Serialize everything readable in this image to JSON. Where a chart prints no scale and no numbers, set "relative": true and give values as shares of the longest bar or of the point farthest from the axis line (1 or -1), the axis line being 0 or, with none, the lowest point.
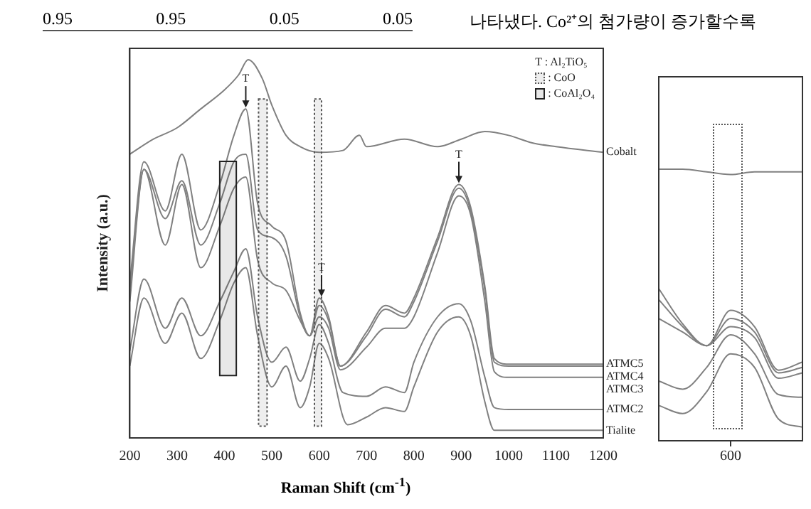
{
  "chart_data": [
    {
      "type": "other",
      "annotations": [
        "0.95",
        "0.95",
        "0.05",
        "0.05",
        "나타냈다. Co²⁺의 첨가량이 증가할수록"
      ]
    },
    {
      "type": "line",
      "relative": true,
      "legend": "top right",
      "xlabel": "Raman Shift (cm$^{-1}$)",
      "ylabel": "Intensity (a.u.)",
      "tick_labels": "x",
      "xlim": [
        200,
        1200
      ],
      "xticks": [
        200,
        300,
        400,
        500,
        600,
        700,
        800,
        900,
        1000,
        1100,
        1200
      ],
      "annotations": [
        "T : Al₂TiO₅",
        {
          "text": "T",
          "x": 445,
          "y": 0.87
        },
        {
          "text": "T",
          "x": 605,
          "y": 0.37
        },
        {
          "text": "T",
          "x": 895,
          "y": 0.67
        }
      ],
      "bands": [
        {
          "axis": "x",
          "from": 472,
          "to": 490,
          "label": ": CoO",
          "color": "#555555"
        },
        {
          "axis": "x",
          "from": 590,
          "to": 605,
          "color": "#555555"
        },
        {
          "axis": "x",
          "from": 390,
          "to": 425,
          "label": ": CoAl₂O₄",
          "color": "#222222"
        }
      ],
      "series": [
        {
          "name": "Cobalt",
          "color": "#808080",
          "x": [
            200,
            250,
            300,
            350,
            400,
            430,
            450,
            480,
            500,
            530,
            560,
            600,
            650,
            685,
            700,
            780,
            850,
            900,
            950,
            1000,
            1050,
            1100,
            1200
          ],
          "values": [
            0.75,
            0.79,
            0.82,
            0.87,
            0.92,
            0.96,
            1.0,
            0.95,
            0.88,
            0.8,
            0.77,
            0.755,
            0.76,
            0.8,
            0.77,
            0.79,
            0.77,
            0.79,
            0.81,
            0.8,
            0.78,
            0.77,
            0.755
          ]
        },
        {
          "name": "ATMC5",
          "color": "#808080",
          "x": [
            200,
            230,
            275,
            310,
            350,
            390,
            420,
            445,
            470,
            500,
            530,
            560,
            580,
            600,
            620,
            645,
            700,
            740,
            780,
            800,
            850,
            895,
            920,
            950,
            970,
            1000,
            1200
          ],
          "values": [
            0.41,
            0.73,
            0.6,
            0.75,
            0.55,
            0.67,
            0.8,
            0.87,
            0.62,
            0.56,
            0.52,
            0.33,
            0.27,
            0.37,
            0.32,
            0.19,
            0.28,
            0.35,
            0.33,
            0.37,
            0.53,
            0.67,
            0.61,
            0.4,
            0.21,
            0.195,
            0.195
          ]
        },
        {
          "name": "ATMC4",
          "color": "#808080",
          "x": [
            200,
            230,
            275,
            310,
            350,
            390,
            420,
            445,
            470,
            500,
            530,
            560,
            580,
            600,
            620,
            645,
            700,
            740,
            780,
            800,
            850,
            895,
            920,
            950,
            970,
            1000,
            1200
          ],
          "values": [
            0.39,
            0.71,
            0.58,
            0.68,
            0.51,
            0.62,
            0.73,
            0.75,
            0.55,
            0.53,
            0.48,
            0.32,
            0.27,
            0.35,
            0.31,
            0.19,
            0.27,
            0.34,
            0.32,
            0.36,
            0.52,
            0.66,
            0.6,
            0.39,
            0.2,
            0.19,
            0.19
          ]
        },
        {
          "name": "ATMC3",
          "color": "#808080",
          "x": [
            200,
            230,
            275,
            310,
            350,
            390,
            420,
            445,
            470,
            500,
            530,
            560,
            580,
            600,
            620,
            645,
            700,
            740,
            780,
            800,
            850,
            895,
            920,
            950,
            970,
            1000,
            1200
          ],
          "values": [
            0.36,
            0.71,
            0.51,
            0.67,
            0.45,
            0.56,
            0.66,
            0.69,
            0.47,
            0.41,
            0.39,
            0.31,
            0.27,
            0.32,
            0.29,
            0.18,
            0.24,
            0.29,
            0.29,
            0.32,
            0.49,
            0.64,
            0.59,
            0.36,
            0.175,
            0.16,
            0.16
          ]
        },
        {
          "name": "ATMC2",
          "color": "#808080",
          "x": [
            200,
            230,
            275,
            310,
            350,
            390,
            420,
            445,
            470,
            500,
            530,
            560,
            580,
            600,
            620,
            650,
            700,
            740,
            780,
            800,
            850,
            895,
            920,
            950,
            970,
            1000,
            1200
          ],
          "values": [
            0.23,
            0.42,
            0.29,
            0.37,
            0.27,
            0.36,
            0.44,
            0.5,
            0.32,
            0.2,
            0.24,
            0.15,
            0.21,
            0.3,
            0.25,
            0.12,
            0.11,
            0.135,
            0.12,
            0.2,
            0.32,
            0.355,
            0.31,
            0.16,
            0.08,
            0.075,
            0.075
          ]
        },
        {
          "name": "Tialite",
          "color": "#808080",
          "x": [
            200,
            230,
            275,
            310,
            350,
            390,
            420,
            445,
            470,
            500,
            530,
            560,
            580,
            600,
            620,
            660,
            700,
            740,
            780,
            800,
            850,
            895,
            920,
            950,
            970,
            1000,
            1200
          ],
          "values": [
            0.19,
            0.37,
            0.25,
            0.33,
            0.21,
            0.31,
            0.41,
            0.45,
            0.27,
            0.135,
            0.19,
            0.08,
            0.135,
            0.25,
            0.21,
            0.035,
            0.055,
            0.08,
            0.07,
            0.135,
            0.28,
            0.32,
            0.27,
            0.095,
            0.02,
            0.02,
            0.02
          ]
        }
      ]
    },
    {
      "type": "line",
      "relative": true,
      "categories": [
        null,
        null,
        null,
        null,
        null,
        null,
        null
      ],
      "annotations": [
        "600"
      ],
      "series": [
        {
          "color": "#808080",
          "values": [
            1,
            1,
            0.99,
            0.98,
            0.99,
            0.99,
            0.99
          ]
        },
        {
          "color": "#808080",
          "values": [
            0.56,
            0.43,
            0.35,
            0.48,
            0.42,
            0.26,
            0.29
          ]
        },
        {
          "color": "#808080",
          "values": [
            0.52,
            0.42,
            0.35,
            0.45,
            0.4,
            0.25,
            0.27
          ]
        },
        {
          "color": "#808080",
          "values": [
            0.45,
            0.4,
            0.35,
            0.42,
            0.38,
            0.23,
            0.25
          ]
        },
        {
          "color": "#808080",
          "values": [
            0.22,
            0.19,
            0.27,
            0.39,
            0.32,
            0.17,
            0.16
          ]
        },
        {
          "color": "#808080",
          "values": [
            0.13,
            0.1,
            0.18,
            0.32,
            0.27,
            0.08,
            0.05
          ]
        }
      ]
    }
  ]
}
